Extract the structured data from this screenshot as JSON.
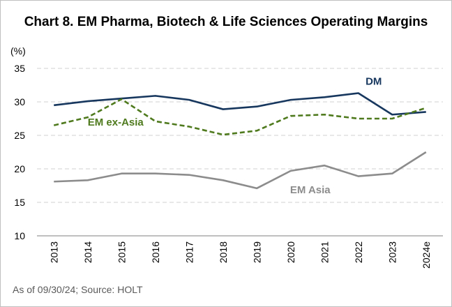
{
  "chart_data": {
    "type": "line",
    "title": "Chart 8. EM Pharma, Biotech & Life Sciences Operating Margins",
    "ylabel": "(%)",
    "xlabel": "",
    "ylim": [
      10,
      35
    ],
    "yticks": [
      "10",
      "15",
      "20",
      "25",
      "30",
      "35"
    ],
    "grid": true,
    "x": [
      "2013",
      "2014",
      "2015",
      "2016",
      "2017",
      "2018",
      "2019",
      "2020",
      "2021",
      "2022",
      "2023",
      "2024e"
    ],
    "series": [
      {
        "name": "DM",
        "color": "#17375e",
        "style": "solid",
        "values": [
          29.5,
          30.1,
          30.5,
          30.9,
          30.3,
          28.9,
          29.3,
          30.3,
          30.7,
          31.3,
          28.1,
          28.5
        ]
      },
      {
        "name": "EM ex-Asia",
        "color": "#4f7a1d",
        "style": "dashed",
        "values": [
          26.5,
          27.7,
          30.4,
          27.1,
          26.3,
          25.1,
          25.7,
          27.9,
          28.1,
          27.5,
          27.5,
          29.1
        ]
      },
      {
        "name": "EM Asia",
        "color": "#8c8c8c",
        "style": "solid",
        "values": [
          18.1,
          18.3,
          19.3,
          19.3,
          19.1,
          18.3,
          17.1,
          19.7,
          20.5,
          18.9,
          19.3,
          22.5
        ]
      }
    ]
  },
  "footer": {
    "source": "As of 09/30/24; Source:  HOLT"
  }
}
